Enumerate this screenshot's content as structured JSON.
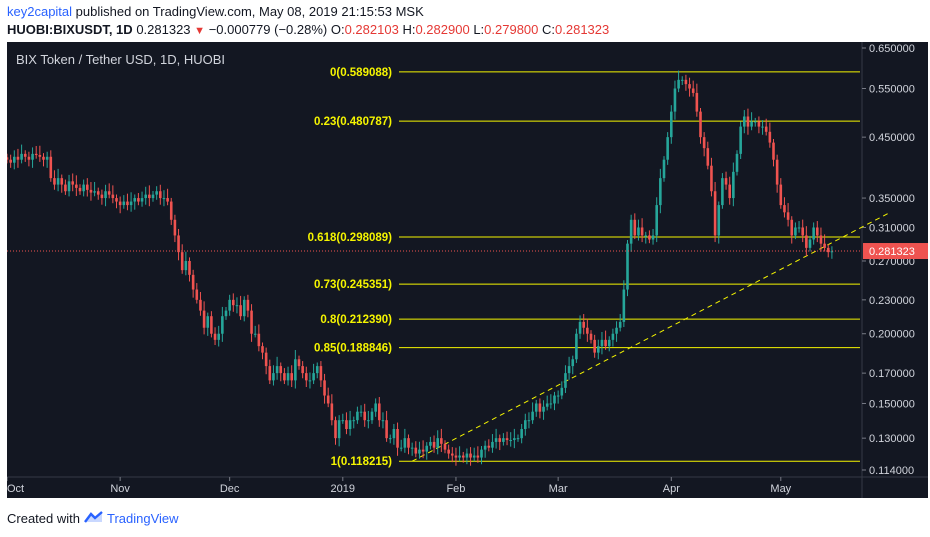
{
  "header": {
    "author": "key2capital",
    "published_text": "published on TradingView.com, May 08, 2019 21:15:53 MSK",
    "symbol": "HUOBI:BIXUSDT, 1D",
    "last": "0.281323",
    "change": "−0.000779 (−0.28%)",
    "o_label": "O:",
    "o_value": "0.282103",
    "h_label": "H:",
    "h_value": "0.282900",
    "l_label": "L:",
    "l_value": "0.279800",
    "c_label": "C:",
    "c_value": "0.281323"
  },
  "footer": {
    "created_with": "Created with",
    "brand": "TradingView"
  },
  "colors": {
    "background": "#131722",
    "up": "#26a69a",
    "down": "#ef5350",
    "fib_line": "#f5f500",
    "fib_text": "#f5f500",
    "trendline": "#f5f500",
    "price_line": "#ef5350",
    "axis_text": "#d1d4dc"
  },
  "chart_data": {
    "type": "candlestick",
    "title": "BIX Token / Tether USD, 1D, HUOBI",
    "y_scale": "log",
    "ylim": [
      0.106,
      0.67
    ],
    "y_ticks": [
      "0.650000",
      "0.550000",
      "0.450000",
      "0.350000",
      "0.310000",
      "0.270000",
      "0.230000",
      "0.200000",
      "0.170000",
      "0.150000",
      "0.130000",
      "0.114000"
    ],
    "x_ticks": [
      "Oct",
      "Nov",
      "Dec",
      "2019",
      "Feb",
      "Mar",
      "Apr",
      "May"
    ],
    "last_price": "0.281323",
    "fib_levels": [
      {
        "label": "0(0.589088)",
        "value": 0.589088
      },
      {
        "label": "0.23(0.480787)",
        "value": 0.480787
      },
      {
        "label": "0.618(0.298089)",
        "value": 0.298089
      },
      {
        "label": "0.73(0.245351)",
        "value": 0.245351
      },
      {
        "label": "0.8(0.212390)",
        "value": 0.21239
      },
      {
        "label": "0.85(0.188846)",
        "value": 0.188846
      },
      {
        "label": "1(0.118215)",
        "value": 0.118215
      }
    ],
    "trendline": {
      "from": [
        "2019-01-20",
        0.118215
      ],
      "to": [
        "2019-05-31",
        0.33
      ]
    },
    "series": {
      "start_date": "2018-10-01",
      "close": [
        0.41,
        0.405,
        0.415,
        0.41,
        0.42,
        0.415,
        0.41,
        0.42,
        0.418,
        0.415,
        0.41,
        0.415,
        0.38,
        0.37,
        0.38,
        0.37,
        0.36,
        0.375,
        0.37,
        0.365,
        0.36,
        0.37,
        0.362,
        0.358,
        0.36,
        0.355,
        0.35,
        0.36,
        0.355,
        0.35,
        0.345,
        0.34,
        0.345,
        0.34,
        0.345,
        0.35,
        0.345,
        0.35,
        0.355,
        0.35,
        0.355,
        0.36,
        0.35,
        0.35,
        0.345,
        0.32,
        0.3,
        0.28,
        0.26,
        0.27,
        0.255,
        0.24,
        0.23,
        0.22,
        0.205,
        0.215,
        0.2,
        0.195,
        0.2,
        0.215,
        0.22,
        0.23,
        0.225,
        0.225,
        0.215,
        0.23,
        0.22,
        0.2,
        0.2,
        0.19,
        0.185,
        0.175,
        0.165,
        0.17,
        0.175,
        0.17,
        0.165,
        0.17,
        0.165,
        0.18,
        0.175,
        0.17,
        0.165,
        0.165,
        0.17,
        0.175,
        0.165,
        0.155,
        0.15,
        0.14,
        0.13,
        0.14,
        0.14,
        0.135,
        0.14,
        0.14,
        0.145,
        0.145,
        0.14,
        0.14,
        0.145,
        0.15,
        0.14,
        0.14,
        0.13,
        0.13,
        0.135,
        0.125,
        0.125,
        0.13,
        0.125,
        0.125,
        0.122,
        0.124,
        0.123,
        0.126,
        0.128,
        0.125,
        0.13,
        0.127,
        0.124,
        0.122,
        0.121,
        0.12,
        0.121,
        0.12,
        0.122,
        0.12,
        0.121,
        0.12,
        0.124,
        0.126,
        0.125,
        0.128,
        0.13,
        0.128,
        0.13,
        0.129,
        0.129,
        0.13,
        0.13,
        0.135,
        0.14,
        0.14,
        0.145,
        0.15,
        0.145,
        0.148,
        0.15,
        0.15,
        0.155,
        0.155,
        0.16,
        0.17,
        0.175,
        0.18,
        0.2,
        0.21,
        0.205,
        0.2,
        0.195,
        0.185,
        0.19,
        0.195,
        0.19,
        0.195,
        0.2,
        0.205,
        0.21,
        0.24,
        0.29,
        0.32,
        0.3,
        0.31,
        0.3,
        0.3,
        0.295,
        0.3,
        0.34,
        0.38,
        0.41,
        0.45,
        0.5,
        0.55,
        0.57,
        0.57,
        0.56,
        0.55,
        0.54,
        0.5,
        0.45,
        0.43,
        0.4,
        0.36,
        0.3,
        0.34,
        0.38,
        0.37,
        0.35,
        0.39,
        0.42,
        0.47,
        0.49,
        0.47,
        0.48,
        0.48,
        0.47,
        0.47,
        0.46,
        0.44,
        0.41,
        0.37,
        0.34,
        0.33,
        0.32,
        0.3,
        0.31,
        0.31,
        0.3,
        0.285,
        0.295,
        0.31,
        0.3,
        0.29,
        0.285,
        0.28,
        0.281
      ]
    }
  }
}
